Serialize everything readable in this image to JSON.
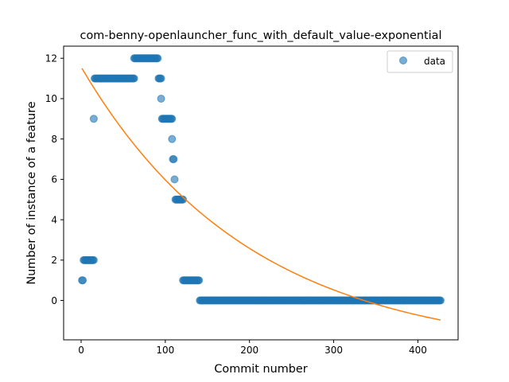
{
  "chart_data": {
    "type": "scatter",
    "title": "com-benny-openlauncher_func_with_default_value-exponential",
    "xlabel": "Commit number",
    "ylabel": "Number of instance of a feature",
    "xlim": [
      -20.8,
      447.8
    ],
    "ylim": [
      -1.95,
      12.6
    ],
    "xticks": [
      0,
      100,
      200,
      300,
      400
    ],
    "yticks": [
      0,
      2,
      4,
      6,
      8,
      10,
      12
    ],
    "xtick_labels": [
      "0",
      "100",
      "200",
      "300",
      "400"
    ],
    "ytick_labels": [
      "0",
      "2",
      "4",
      "6",
      "8",
      "10",
      "12"
    ],
    "legend": {
      "placement": "top-right",
      "entries": [
        "data"
      ]
    },
    "grid": false,
    "colors": {
      "data": "#1f77b4",
      "fit": "#ff7f0e"
    },
    "series": [
      {
        "name": "data",
        "kind": "scatter",
        "segments": [
          {
            "x_start": 1,
            "x_end": 2,
            "y": 1
          },
          {
            "x_start": 3,
            "x_end": 15,
            "y": 2
          },
          {
            "x_start": 15,
            "x_end": 15,
            "y": 9
          },
          {
            "x_start": 16,
            "x_end": 63,
            "y": 11
          },
          {
            "x_start": 63,
            "x_end": 91,
            "y": 12
          },
          {
            "x_start": 92,
            "x_end": 95,
            "y": 11
          },
          {
            "x_start": 95,
            "x_end": 95,
            "y": 10
          },
          {
            "x_start": 96,
            "x_end": 108,
            "y": 9
          },
          {
            "x_start": 108,
            "x_end": 108,
            "y": 8
          },
          {
            "x_start": 109,
            "x_end": 110,
            "y": 7
          },
          {
            "x_start": 111,
            "x_end": 111,
            "y": 6
          },
          {
            "x_start": 112,
            "x_end": 121,
            "y": 5
          },
          {
            "x_start": 121,
            "x_end": 140,
            "y": 1
          },
          {
            "x_start": 141,
            "x_end": 427,
            "y": 0
          }
        ]
      },
      {
        "name": "",
        "kind": "line",
        "fit": {
          "a": 14.22,
          "b": 0.005,
          "c": -2.65,
          "x_start": 1,
          "x_end": 427
        }
      }
    ]
  }
}
